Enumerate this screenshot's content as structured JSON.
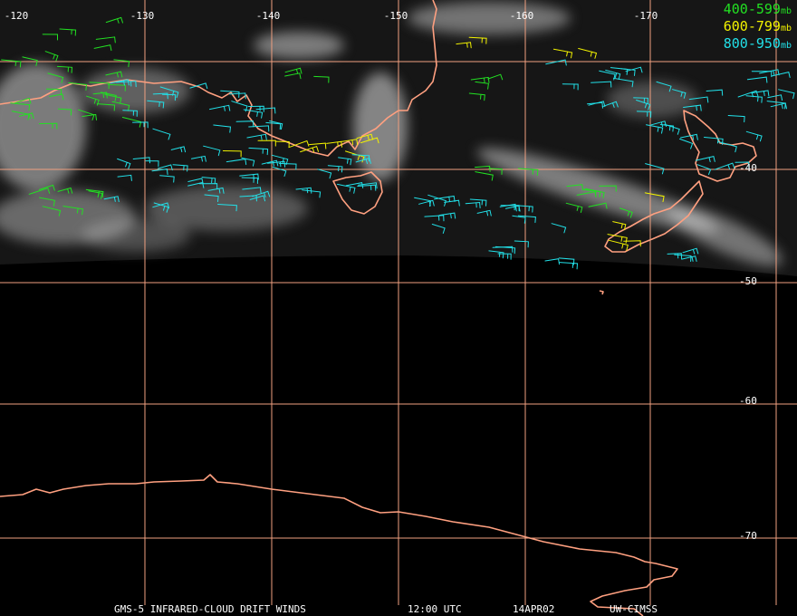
{
  "map": {
    "lon_labels": [
      "-120",
      "-130",
      "-140",
      "-150",
      "-160",
      "-170"
    ],
    "lat_labels": [
      "-40",
      "-50",
      "-60",
      "-70"
    ],
    "colors": {
      "background": "#000000",
      "graticule": "#f0a080",
      "coastline": "#ffa080",
      "cloud": "#d8d8d8",
      "earth_disk": "#1a1a1a"
    }
  },
  "legend": {
    "unit": "mb",
    "items": [
      {
        "range": "400-599",
        "color": "#22e022"
      },
      {
        "range": "600-799",
        "color": "#f2f200"
      },
      {
        "range": "800-950",
        "color": "#22e0e8"
      }
    ]
  },
  "footer": {
    "product": "GMS-5 INFRARED-CLOUD DRIFT WINDS",
    "time": "12:00 UTC",
    "date": "14APR02",
    "source": "UW-CIMSS"
  }
}
